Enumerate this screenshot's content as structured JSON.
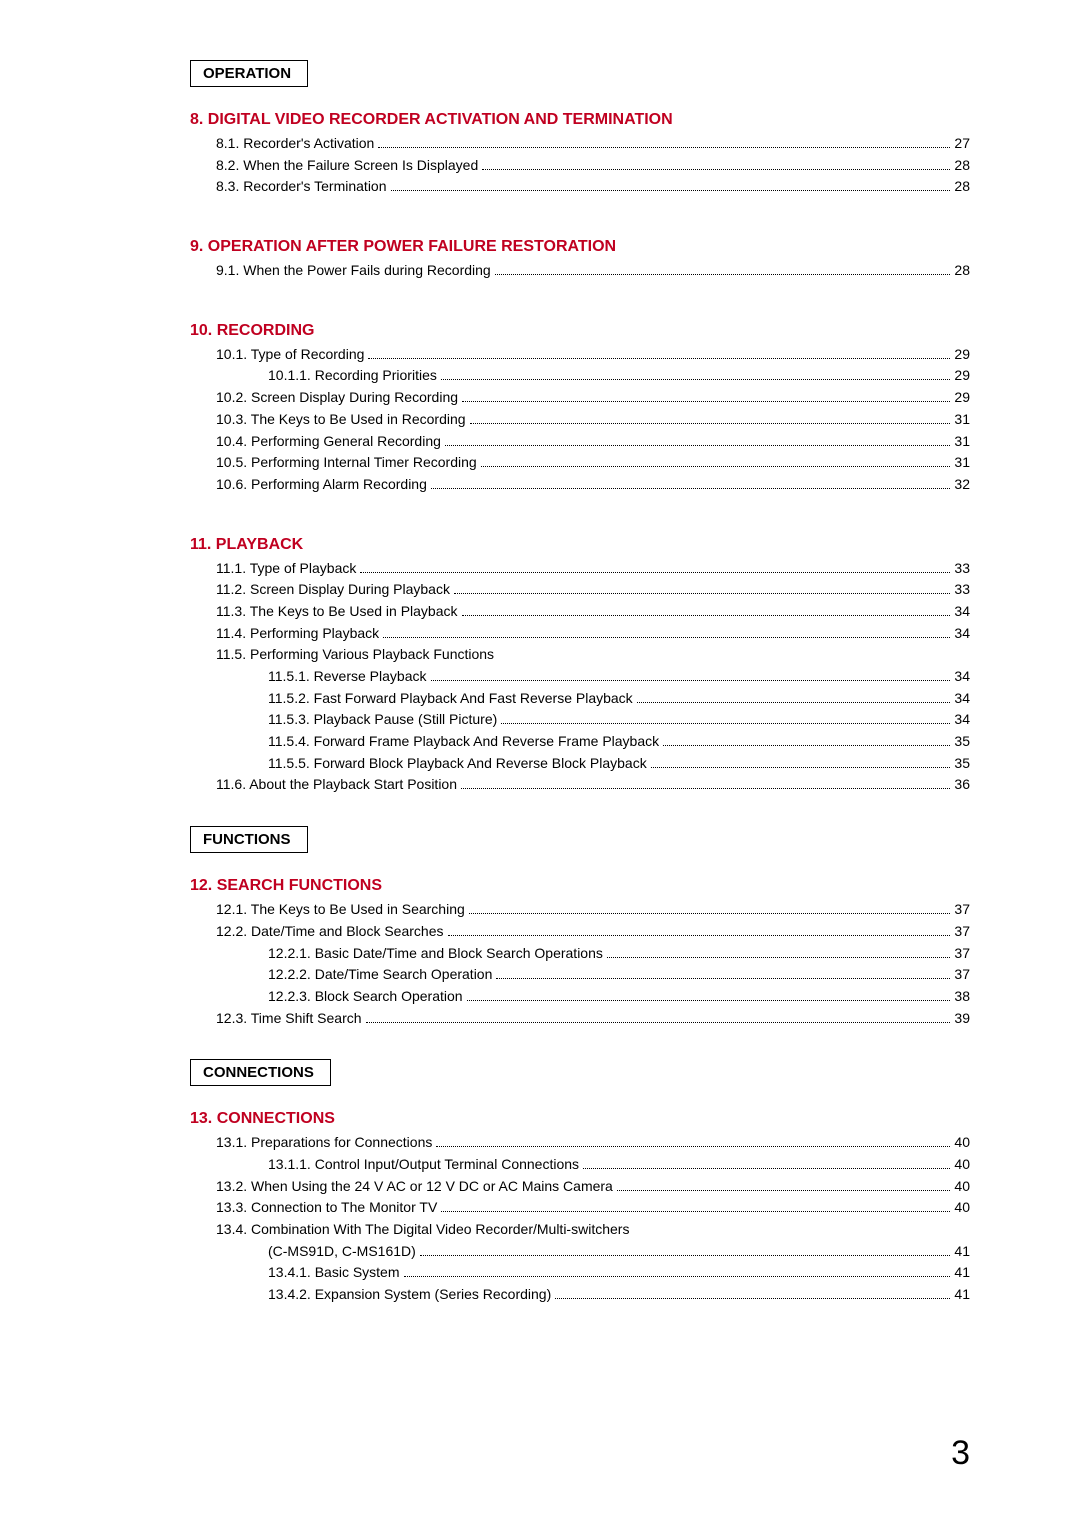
{
  "sections": [
    {
      "box_label": "OPERATION",
      "chapters": [
        {
          "heading": "8.  DIGITAL VIDEO RECORDER ACTIVATION AND TERMINATION",
          "entries": [
            {
              "label": "8.1. Recorder's Activation",
              "page": "27",
              "indent": 1
            },
            {
              "label": "8.2. When the Failure Screen Is Displayed",
              "page": "28",
              "indent": 1
            },
            {
              "label": "8.3. Recorder's Termination",
              "page": "28",
              "indent": 1
            }
          ]
        },
        {
          "heading": "9.  OPERATION AFTER POWER FAILURE RESTORATION",
          "entries": [
            {
              "label": "9.1. When the Power Fails during Recording",
              "page": "28",
              "indent": 1
            }
          ]
        },
        {
          "heading": "10. RECORDING",
          "entries": [
            {
              "label": "10.1. Type of Recording",
              "page": "29",
              "indent": 1
            },
            {
              "label": "10.1.1. Recording Priorities",
              "page": "29",
              "indent": 2
            },
            {
              "label": "10.2. Screen Display During Recording",
              "page": "29",
              "indent": 1
            },
            {
              "label": "10.3. The Keys to Be Used in Recording",
              "page": "31",
              "indent": 1
            },
            {
              "label": "10.4. Performing General Recording",
              "page": "31",
              "indent": 1
            },
            {
              "label": "10.5. Performing Internal Timer Recording",
              "page": "31",
              "indent": 1
            },
            {
              "label": "10.6. Performing Alarm Recording",
              "page": "32",
              "indent": 1
            }
          ]
        },
        {
          "heading": "11. PLAYBACK",
          "entries": [
            {
              "label": "11.1. Type of Playback",
              "page": "33",
              "indent": 1
            },
            {
              "label": "11.2. Screen Display During Playback",
              "page": "33",
              "indent": 1
            },
            {
              "label": "11.3. The Keys to Be Used in Playback",
              "page": "34",
              "indent": 1
            },
            {
              "label": "11.4. Performing Playback",
              "page": "34",
              "indent": 1
            },
            {
              "label": "11.5. Performing Various Playback Functions",
              "page": "",
              "indent": 1
            },
            {
              "label": "11.5.1. Reverse Playback",
              "page": "34",
              "indent": 2
            },
            {
              "label": "11.5.2. Fast Forward Playback And Fast Reverse Playback",
              "page": "34",
              "indent": 2
            },
            {
              "label": "11.5.3. Playback Pause (Still Picture)",
              "page": "34",
              "indent": 2
            },
            {
              "label": "11.5.4. Forward Frame Playback And Reverse Frame Playback",
              "page": "35",
              "indent": 2
            },
            {
              "label": "11.5.5. Forward Block Playback And Reverse Block Playback",
              "page": "35",
              "indent": 2
            },
            {
              "label": "11.6. About the Playback Start Position",
              "page": "36",
              "indent": 1
            }
          ]
        }
      ]
    },
    {
      "box_label": "FUNCTIONS",
      "chapters": [
        {
          "heading": "12. SEARCH FUNCTIONS",
          "entries": [
            {
              "label": "12.1. The Keys to Be Used in Searching",
              "page": "37",
              "indent": 1
            },
            {
              "label": "12.2. Date/Time and Block Searches",
              "page": "37",
              "indent": 1
            },
            {
              "label": "12.2.1. Basic Date/Time and Block Search Operations",
              "page": "37",
              "indent": 2
            },
            {
              "label": "12.2.2. Date/Time Search Operation",
              "page": "37",
              "indent": 2
            },
            {
              "label": "12.2.3. Block Search Operation",
              "page": "38",
              "indent": 2
            },
            {
              "label": "12.3. Time Shift Search",
              "page": "39",
              "indent": 1
            }
          ]
        }
      ]
    },
    {
      "box_label": "CONNECTIONS",
      "chapters": [
        {
          "heading": "13. CONNECTIONS",
          "entries": [
            {
              "label": "13.1. Preparations for Connections",
              "page": "40",
              "indent": 1
            },
            {
              "label": "13.1.1. Control Input/Output Terminal Connections",
              "page": "40",
              "indent": 2
            },
            {
              "label": "13.2. When Using the 24 V AC or 12 V DC or AC Mains Camera",
              "page": "40",
              "indent": 1
            },
            {
              "label": "13.3. Connection to The Monitor TV",
              "page": "40",
              "indent": 1
            },
            {
              "label": "13.4. Combination With The Digital Video Recorder/Multi-switchers",
              "page": "",
              "indent": 1
            },
            {
              "label": "(C-MS91D, C-MS161D)",
              "page": "41",
              "indent": 2
            },
            {
              "label": "13.4.1. Basic System",
              "page": "41",
              "indent": 2
            },
            {
              "label": "13.4.2. Expansion System (Series Recording)",
              "page": "41",
              "indent": 2
            }
          ]
        }
      ]
    }
  ],
  "page_number": "3",
  "colors": {
    "heading_red": "#c00020",
    "text_black": "#000000",
    "background": "#ffffff"
  }
}
